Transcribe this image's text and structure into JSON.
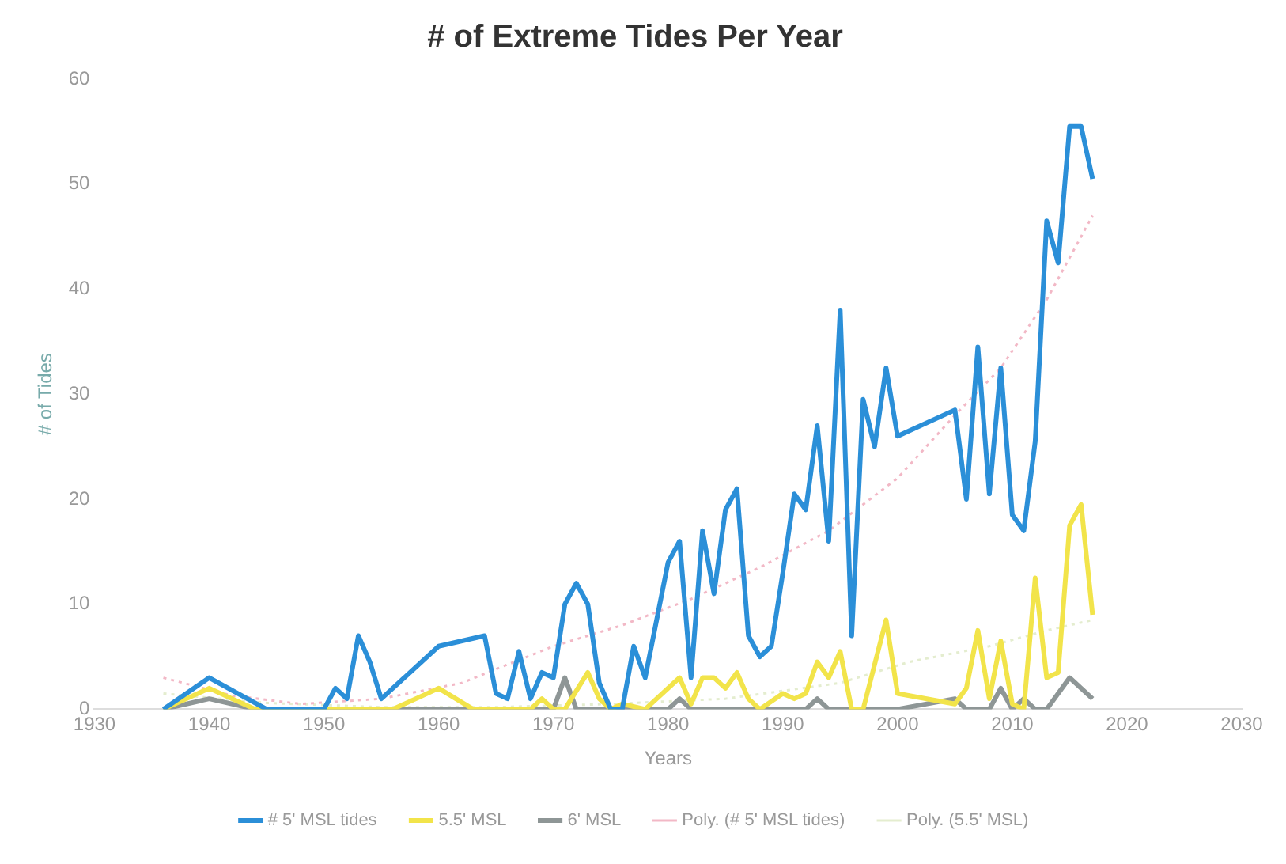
{
  "chart_data": {
    "type": "line",
    "title": "# of Extreme Tides Per Year",
    "xlabel": "Years",
    "ylabel": "# of Tides",
    "xlim": [
      1930,
      2030
    ],
    "xticks": [
      1930,
      1940,
      1950,
      1960,
      1970,
      1980,
      1990,
      2000,
      2010,
      2020,
      2030
    ],
    "ylim": [
      0,
      60
    ],
    "yticks": [
      0,
      10,
      20,
      30,
      40,
      50,
      60
    ],
    "grid": false,
    "legend": "bottom",
    "marker": "none",
    "series": [
      {
        "name": "# 5' MSL tides",
        "color": "#2b8fd8",
        "x": [
          1936,
          1940,
          1945,
          1950,
          1951,
          1952,
          1953,
          1954,
          1955,
          1956,
          1960,
          1964,
          1965,
          1966,
          1967,
          1968,
          1969,
          1970,
          1971,
          1972,
          1973,
          1974,
          1975,
          1976,
          1977,
          1978,
          1980,
          1981,
          1982,
          1983,
          1984,
          1985,
          1986,
          1987,
          1988,
          1989,
          1990,
          1991,
          1992,
          1993,
          1994,
          1995,
          1996,
          1997,
          1998,
          1999,
          2000,
          2005,
          2006,
          2007,
          2008,
          2009,
          2010,
          2011,
          2012,
          2013,
          2014,
          2015,
          2016,
          2017
        ],
        "values": [
          0,
          3,
          0,
          0,
          2,
          1,
          7,
          4.5,
          1,
          2,
          6,
          7,
          1.5,
          1,
          5.5,
          1,
          3.5,
          3,
          10,
          12,
          10,
          2.5,
          0,
          0,
          6,
          3,
          14,
          16,
          3,
          17,
          11,
          19,
          21,
          7,
          5,
          6,
          13,
          20.5,
          19,
          27,
          16,
          38,
          7,
          29.5,
          25,
          32.5,
          26,
          28.5,
          20,
          34.5,
          20.5,
          32.5,
          18.5,
          17,
          25.5,
          46.5,
          42.5,
          55.5,
          55.5,
          50.5
        ]
      },
      {
        "name": "5.5' MSL",
        "color": "#f2e44a",
        "x": [
          1936,
          1940,
          1944,
          1956,
          1960,
          1963,
          1968,
          1969,
          1970,
          1971,
          1973,
          1974,
          1975,
          1976,
          1978,
          1981,
          1982,
          1983,
          1984,
          1985,
          1986,
          1987,
          1988,
          1990,
          1991,
          1992,
          1993,
          1994,
          1995,
          1996,
          1997,
          1999,
          2000,
          2005,
          2006,
          2007,
          2008,
          2009,
          2010,
          2011,
          2012,
          2013,
          2014,
          2015,
          2016,
          2017
        ],
        "values": [
          0,
          2,
          0,
          0,
          2,
          0,
          0,
          1,
          0,
          0,
          3.5,
          1,
          0,
          0.5,
          0,
          3,
          0.5,
          3,
          3,
          2,
          3.5,
          1,
          0,
          1.5,
          1,
          1.5,
          4.5,
          3,
          5.5,
          0,
          0,
          8.5,
          1.5,
          0.5,
          2,
          7.5,
          1,
          6.5,
          0.5,
          0,
          12.5,
          3,
          3.5,
          17.5,
          19.5,
          9
        ]
      },
      {
        "name": "6' MSL",
        "color": "#8e9696",
        "x": [
          1936,
          1940,
          1944,
          1970,
          1971,
          1972,
          1980,
          1981,
          1982,
          1992,
          1993,
          1994,
          2000,
          2005,
          2006,
          2008,
          2009,
          2010,
          2011,
          2012,
          2013,
          2015,
          2017
        ],
        "values": [
          0,
          1,
          0,
          0,
          3,
          0,
          0,
          1,
          0,
          0,
          1,
          0,
          0,
          1,
          0,
          0,
          2,
          0,
          1,
          0,
          0,
          3,
          1
        ]
      },
      {
        "name": "Poly. (# 5' MSL tides)",
        "color": "#f2b8c6",
        "line_style": "dotted",
        "x": [
          1936,
          1942,
          1948,
          1955,
          1962,
          1970,
          1976,
          1982,
          1988,
          1994,
          2000,
          2005,
          2009,
          2013,
          2017
        ],
        "values": [
          3,
          1.3,
          0.5,
          1,
          2.5,
          6,
          8,
          10.5,
          13.5,
          17,
          22,
          28,
          32.5,
          39,
          47
        ]
      },
      {
        "name": "Poly. (5.5' MSL)",
        "color": "#e4edcf",
        "line_style": "dotted",
        "x": [
          1936,
          1945,
          1955,
          1965,
          1975,
          1985,
          1995,
          2001,
          2008,
          2013,
          2017
        ],
        "values": [
          1.5,
          0.6,
          0.2,
          0.2,
          0.5,
          1,
          2.5,
          4.5,
          6,
          7.5,
          8.5
        ]
      }
    ]
  }
}
